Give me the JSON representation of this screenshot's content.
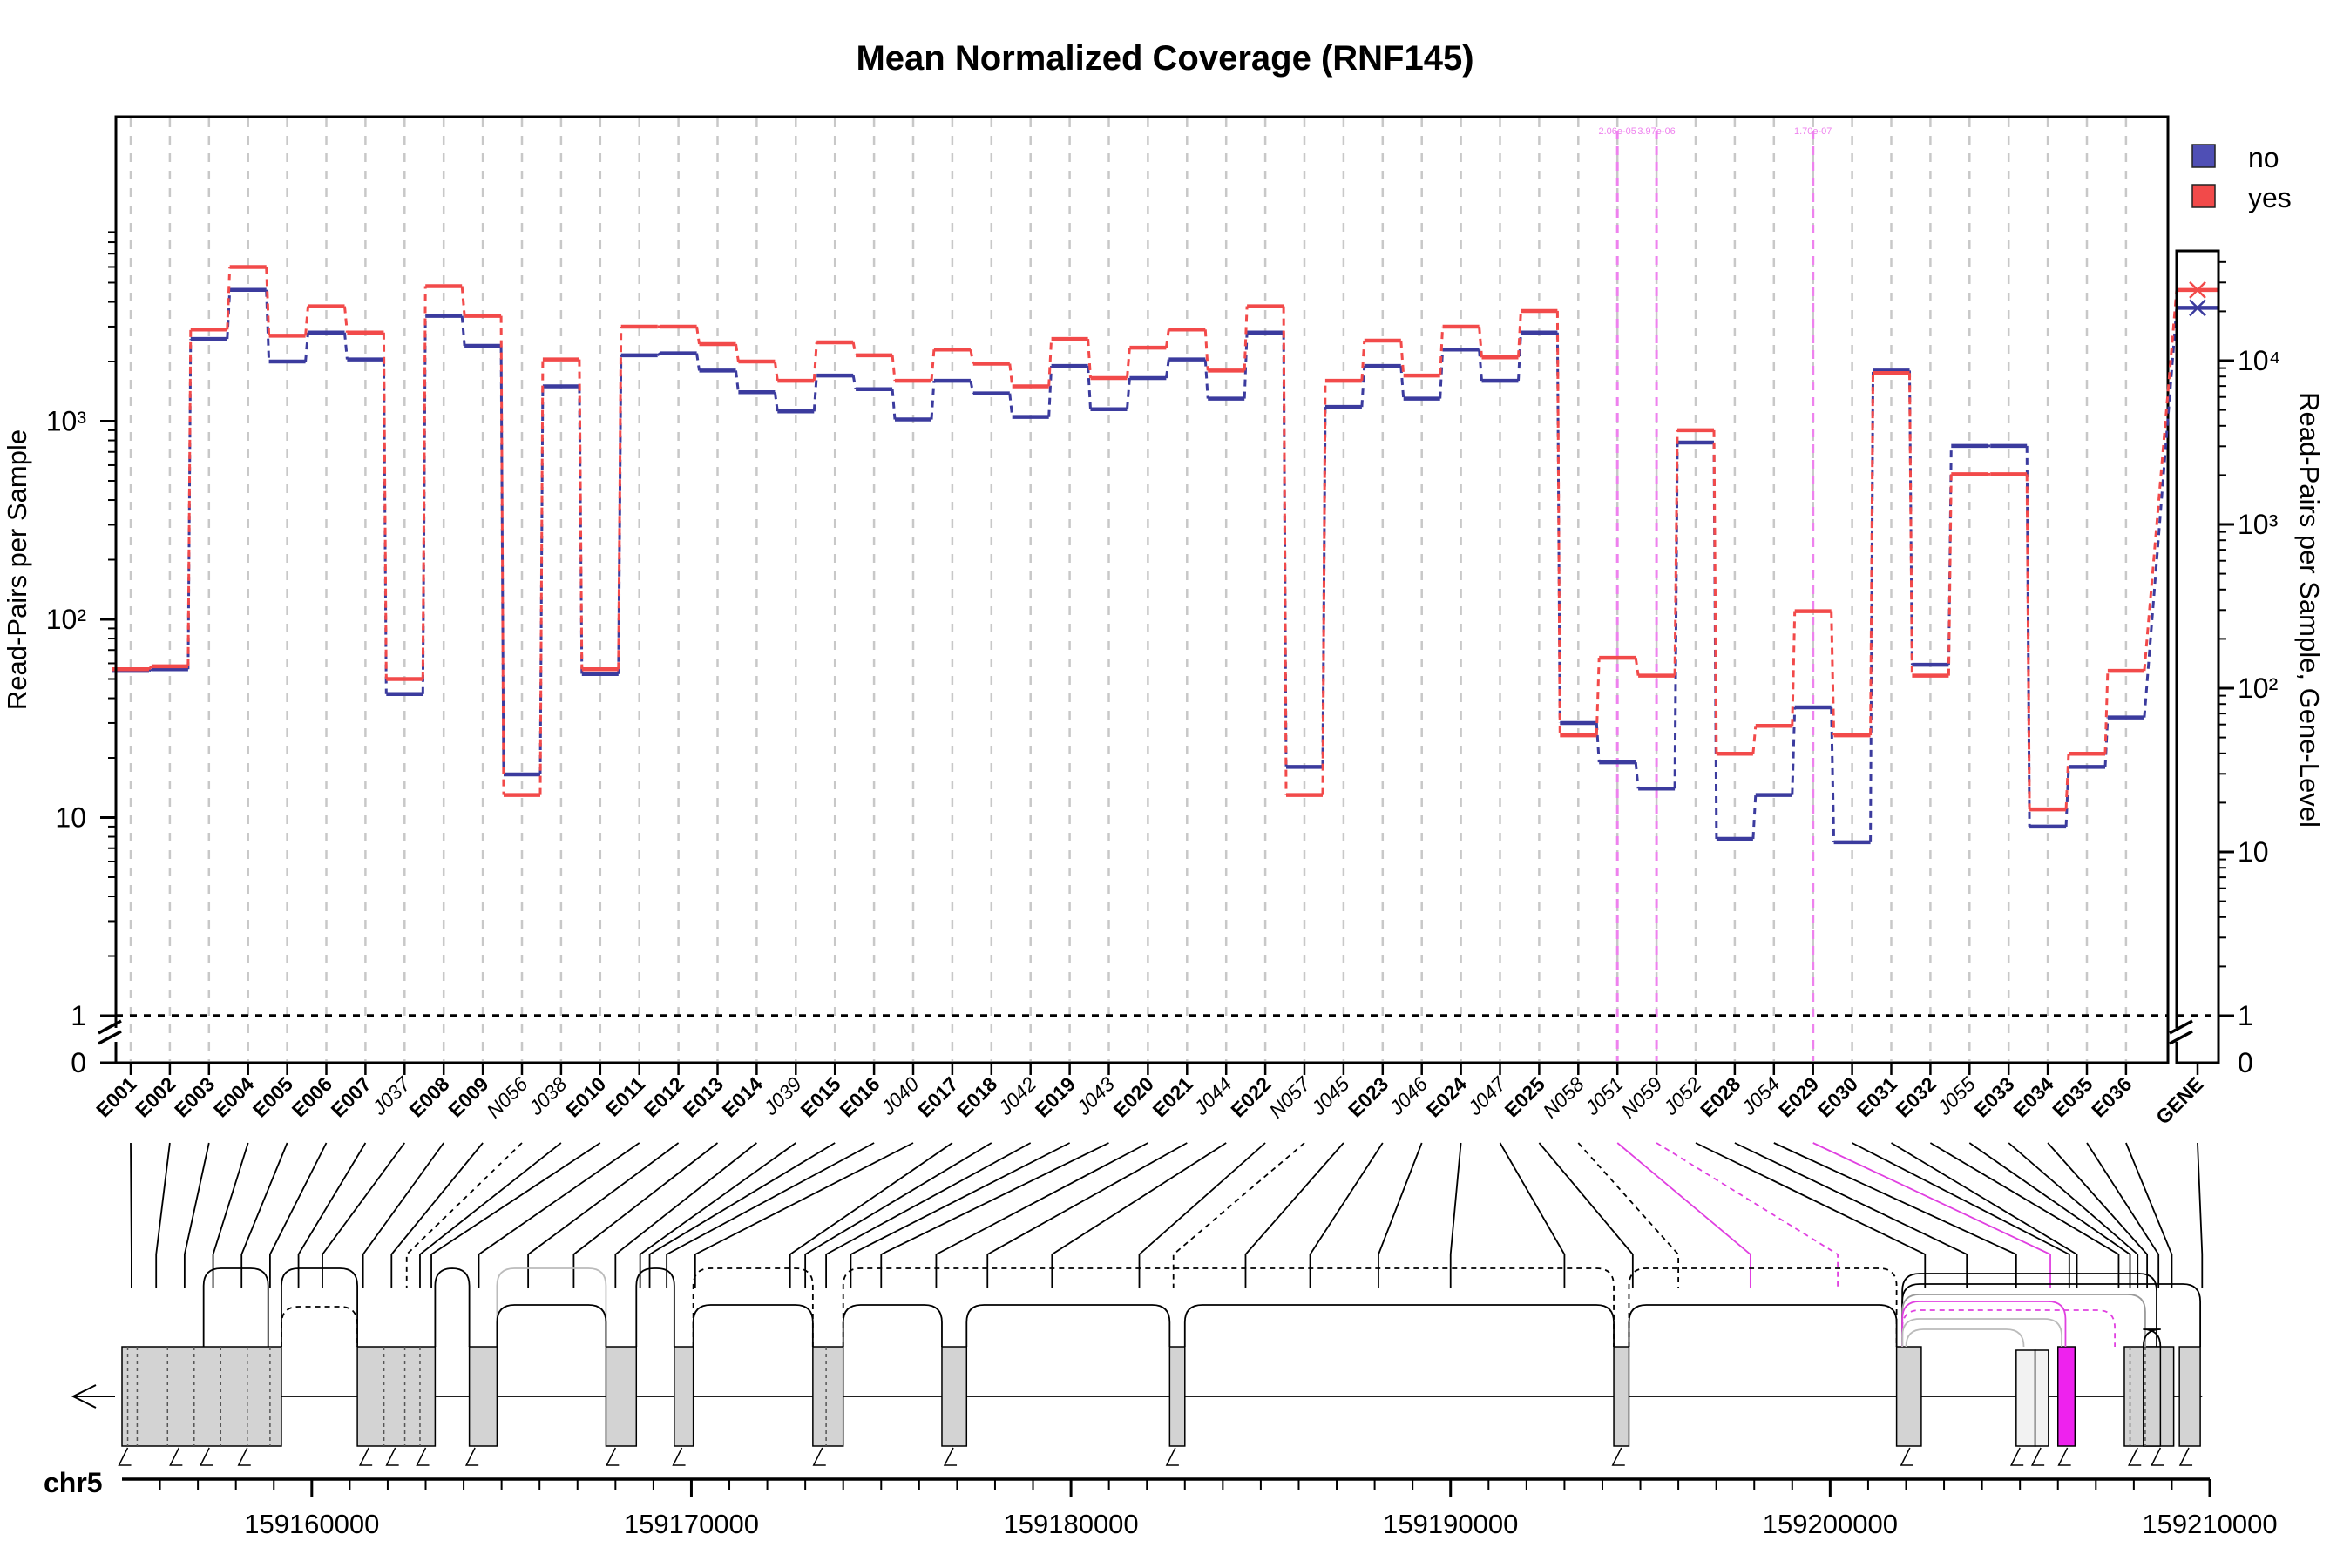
{
  "chart_data": {
    "type": "line",
    "title": "Mean Normalized Coverage (RNF145)",
    "ylabel": "Read-Pairs per Sample",
    "ylabel_right": "Read-Pairs per Sample, Gene-Level",
    "yscale": "log",
    "ylim": [
      0.9,
      9000
    ],
    "yticks": [
      "0",
      "1",
      "10",
      "10²",
      "10³"
    ],
    "gene_yticks": [
      "0",
      "1",
      "10",
      "10²",
      "10³",
      "10⁴"
    ],
    "legend": {
      "position": "top-right",
      "entries": [
        "no",
        "yes"
      ]
    },
    "colors": {
      "no": "#3b3b9e",
      "yes": "#f24a4a",
      "novel_junction": "#e040e0",
      "exon_box": "#d3d3d3"
    },
    "features": [
      {
        "label": "E001",
        "kind": "exon",
        "no": 55,
        "yes": 56
      },
      {
        "label": "E002",
        "kind": "exon",
        "no": 56,
        "yes": 58
      },
      {
        "label": "E003",
        "kind": "exon",
        "no": 2600,
        "yes": 2900
      },
      {
        "label": "E004",
        "kind": "exon",
        "no": 4600,
        "yes": 6000
      },
      {
        "label": "E005",
        "kind": "exon",
        "no": 2000,
        "yes": 2700
      },
      {
        "label": "E006",
        "kind": "exon",
        "no": 2800,
        "yes": 3800
      },
      {
        "label": "E007",
        "kind": "exon",
        "no": 2050,
        "yes": 2800
      },
      {
        "label": "J037",
        "kind": "junction",
        "no": 42,
        "yes": 50
      },
      {
        "label": "E008",
        "kind": "exon",
        "no": 3400,
        "yes": 4800
      },
      {
        "label": "E009",
        "kind": "exon",
        "no": 2400,
        "yes": 3400
      },
      {
        "label": "N056",
        "kind": "novel",
        "no": 16.5,
        "yes": 13
      },
      {
        "label": "J038",
        "kind": "junction",
        "no": 1500,
        "yes": 2050
      },
      {
        "label": "E010",
        "kind": "exon",
        "no": 53,
        "yes": 56
      },
      {
        "label": "E011",
        "kind": "exon",
        "no": 2150,
        "yes": 3000
      },
      {
        "label": "E012",
        "kind": "exon",
        "no": 2200,
        "yes": 3000
      },
      {
        "label": "E013",
        "kind": "exon",
        "no": 1800,
        "yes": 2450
      },
      {
        "label": "E014",
        "kind": "exon",
        "no": 1400,
        "yes": 2000
      },
      {
        "label": "J039",
        "kind": "junction",
        "no": 1120,
        "yes": 1600
      },
      {
        "label": "E015",
        "kind": "exon",
        "no": 1700,
        "yes": 2500
      },
      {
        "label": "E016",
        "kind": "exon",
        "no": 1450,
        "yes": 2150
      },
      {
        "label": "J040",
        "kind": "junction",
        "no": 1020,
        "yes": 1600
      },
      {
        "label": "E017",
        "kind": "exon",
        "no": 1600,
        "yes": 2300
      },
      {
        "label": "E018",
        "kind": "exon",
        "no": 1380,
        "yes": 1950
      },
      {
        "label": "J042",
        "kind": "junction",
        "no": 1050,
        "yes": 1500
      },
      {
        "label": "E019",
        "kind": "exon",
        "no": 1900,
        "yes": 2600
      },
      {
        "label": "J043",
        "kind": "junction",
        "no": 1150,
        "yes": 1650
      },
      {
        "label": "E020",
        "kind": "exon",
        "no": 1650,
        "yes": 2350
      },
      {
        "label": "E021",
        "kind": "exon",
        "no": 2050,
        "yes": 2900
      },
      {
        "label": "J044",
        "kind": "junction",
        "no": 1300,
        "yes": 1800
      },
      {
        "label": "E022",
        "kind": "exon",
        "no": 2800,
        "yes": 3800
      },
      {
        "label": "N057",
        "kind": "novel",
        "no": 18,
        "yes": 13
      },
      {
        "label": "J045",
        "kind": "junction",
        "no": 1180,
        "yes": 1600
      },
      {
        "label": "E023",
        "kind": "exon",
        "no": 1900,
        "yes": 2550
      },
      {
        "label": "J046",
        "kind": "junction",
        "no": 1300,
        "yes": 1700
      },
      {
        "label": "E024",
        "kind": "exon",
        "no": 2300,
        "yes": 3000
      },
      {
        "label": "J047",
        "kind": "junction",
        "no": 1600,
        "yes": 2100
      },
      {
        "label": "E025",
        "kind": "exon",
        "no": 2800,
        "yes": 3600
      },
      {
        "label": "N058",
        "kind": "novel",
        "no": 30,
        "yes": 26
      },
      {
        "label": "J051",
        "kind": "junction",
        "no": 19,
        "yes": 64
      },
      {
        "label": "N059",
        "kind": "novel",
        "no": 14,
        "yes": 52
      },
      {
        "label": "J052",
        "kind": "junction",
        "no": 780,
        "yes": 900
      },
      {
        "label": "E028",
        "kind": "exon",
        "no": 7.8,
        "yes": 21
      },
      {
        "label": "J054",
        "kind": "junction",
        "no": 13,
        "yes": 29
      },
      {
        "label": "E029",
        "kind": "exon",
        "no": 36,
        "yes": 110
      },
      {
        "label": "E030",
        "kind": "exon",
        "no": 7.5,
        "yes": 26
      },
      {
        "label": "E031",
        "kind": "exon",
        "no": 1800,
        "yes": 1750
      },
      {
        "label": "E032",
        "kind": "exon",
        "no": 59,
        "yes": 52
      },
      {
        "label": "J055",
        "kind": "junction",
        "no": 750,
        "yes": 540
      },
      {
        "label": "E033",
        "kind": "exon",
        "no": 750,
        "yes": 540
      },
      {
        "label": "E034",
        "kind": "exon",
        "no": 9,
        "yes": 11
      },
      {
        "label": "E035",
        "kind": "exon",
        "no": 18,
        "yes": 21
      },
      {
        "label": "E036",
        "kind": "exon",
        "no": 32,
        "yes": 55
      }
    ],
    "gene_level": {
      "label": "GENE",
      "no": 21000,
      "yes": 27000
    },
    "pvalues": [
      {
        "feature": "J051",
        "text": "2.06e-05"
      },
      {
        "feature": "N059",
        "text": "3.97e-06"
      },
      {
        "feature": "E029",
        "text": "1.70e-07"
      }
    ],
    "genome": {
      "chromosome": "chr5",
      "xlim": [
        159155000,
        159210000
      ],
      "xticks": [
        "159160000",
        "159170000",
        "159180000",
        "159190000",
        "159200000",
        "159210000"
      ],
      "strand": "minus"
    }
  }
}
